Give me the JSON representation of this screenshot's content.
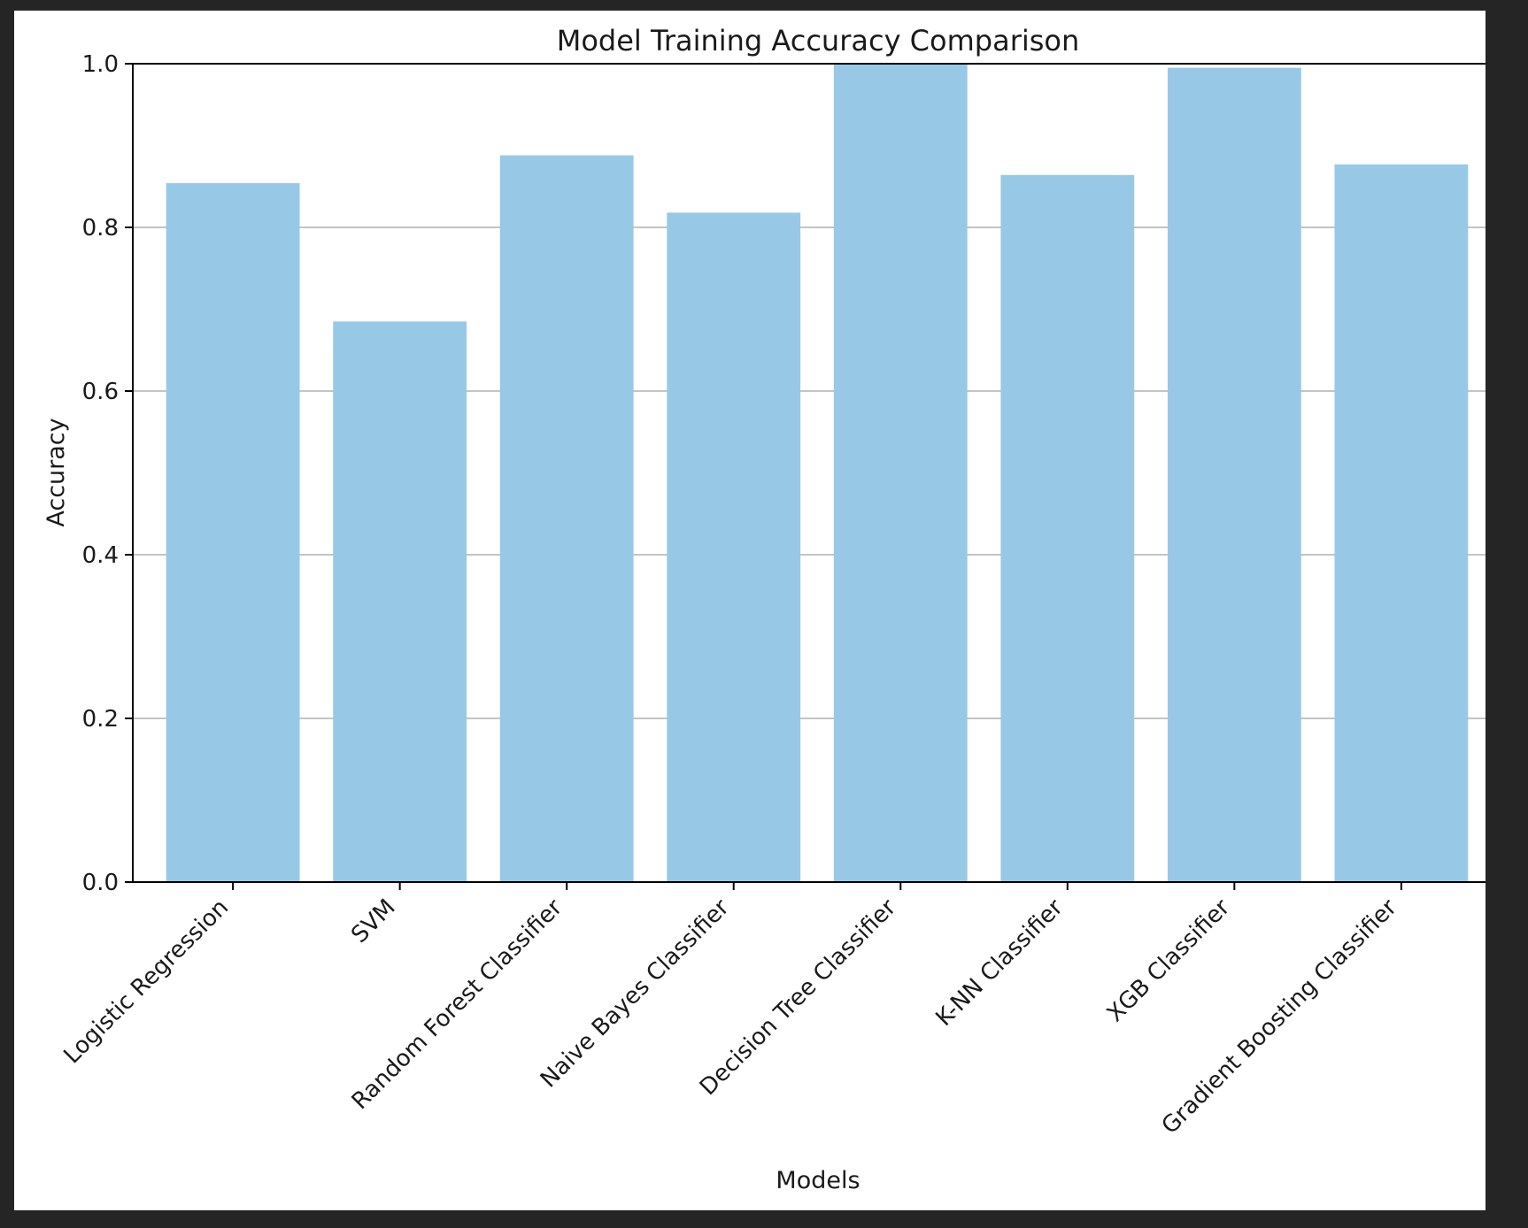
{
  "chart_data": {
    "type": "bar",
    "title": "Model Training Accuracy Comparison",
    "xlabel": "Models",
    "ylabel": "Accuracy",
    "categories": [
      "Logistic Regression",
      "SVM",
      "Random Forest Classifier",
      "Naive Bayes Classifier",
      "Decision Tree Classifier",
      "K-NN Classifier",
      "XGB Classifier",
      "Gradient Boosting Classifier"
    ],
    "values": [
      0.854,
      0.685,
      0.888,
      0.818,
      1.0,
      0.864,
      0.995,
      0.877
    ],
    "ylim": [
      0,
      1.0
    ],
    "yticks": [
      "0.0",
      "0.2",
      "0.4",
      "0.6",
      "0.8",
      "1.0"
    ],
    "grid": "horizontal",
    "bar_color": "#97c9e7"
  }
}
